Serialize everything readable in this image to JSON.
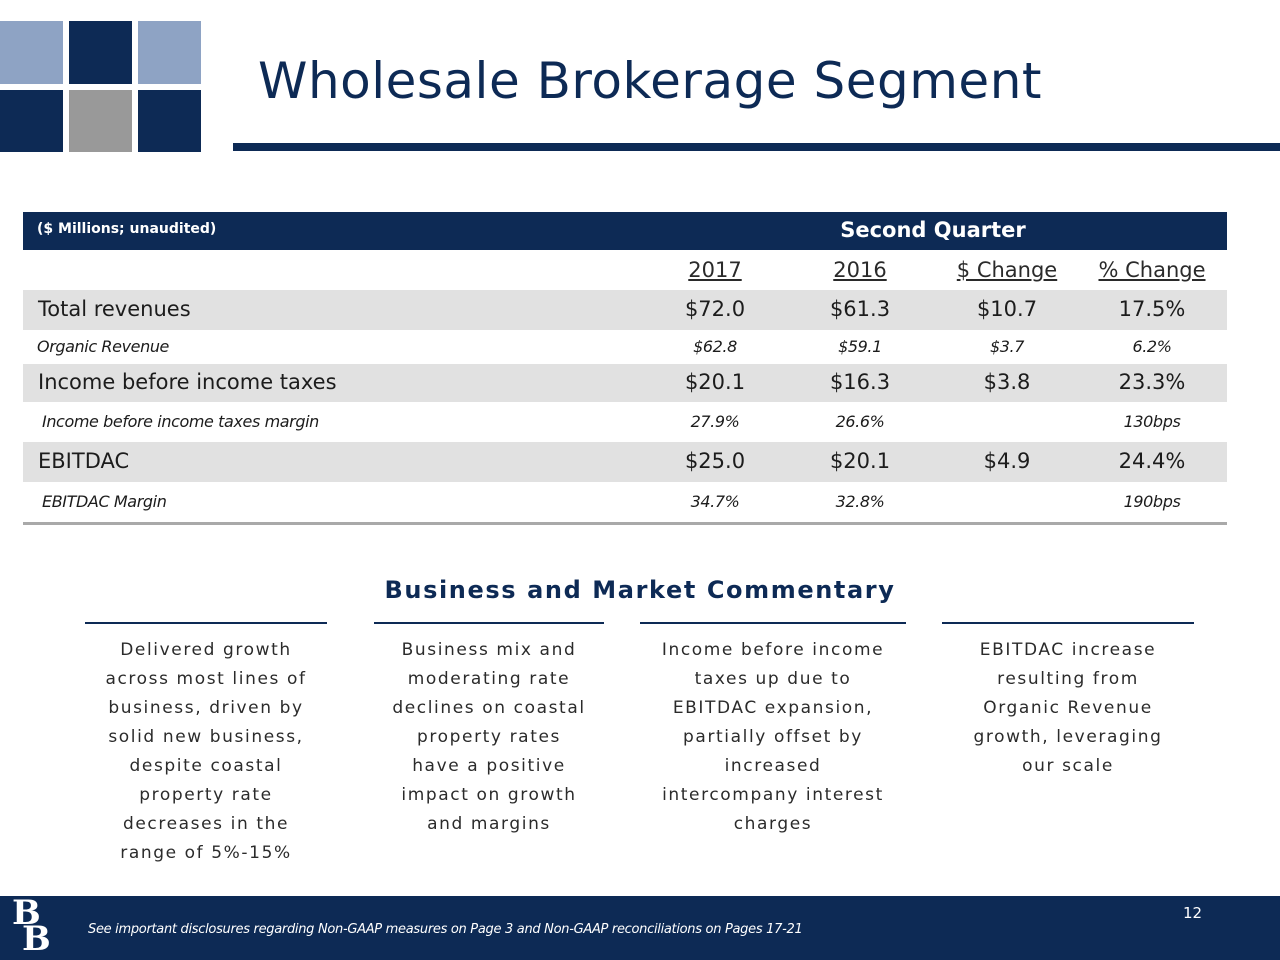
{
  "header": {
    "title": "Wholesale Brokerage Segment"
  },
  "colors": {
    "navy": "#0d2a55",
    "light_blue": "#8ea3c4",
    "gray": "#999999",
    "row_shade": "#e1e1e1"
  },
  "table": {
    "units": "($ Millions; unaudited)",
    "group_header": "Second Quarter",
    "columns": [
      "2017",
      "2016",
      "$ Change",
      "% Change"
    ],
    "rows": [
      {
        "label": "Total revenues",
        "values": [
          "$72.0",
          "$61.3",
          "$10.7",
          "17.5%"
        ]
      },
      {
        "label": "Organic Revenue",
        "values": [
          "$62.8",
          "$59.1",
          "$3.7",
          "6.2%"
        ]
      },
      {
        "label": "Income before income taxes",
        "values": [
          "$20.1",
          "$16.3",
          "$3.8",
          "23.3%"
        ]
      },
      {
        "label": "Income before income taxes margin",
        "values": [
          "27.9%",
          "26.6%",
          "",
          "130bps"
        ]
      },
      {
        "label": "EBITDAC",
        "values": [
          "$25.0",
          "$20.1",
          "$4.9",
          "24.4%"
        ]
      },
      {
        "label": "EBITDAC Margin",
        "values": [
          "34.7%",
          "32.8%",
          "",
          "190bps"
        ]
      }
    ]
  },
  "commentary": {
    "title": "Business and Market Commentary",
    "items": [
      "Delivered growth\nacross most lines of\nbusiness, driven by\nsolid new business,\ndespite coastal\nproperty rate\ndecreases in the\nrange of 5%-15%",
      "Business mix and\nmoderating rate\ndeclines on coastal\nproperty rates\nhave a positive\nimpact on growth\nand margins",
      "Income before income\ntaxes up due to\nEBITDAC expansion,\npartially offset by\nincreased\nintercompany interest\ncharges",
      "EBITDAC increase\nresulting from\nOrganic Revenue\ngrowth, leveraging\nour scale"
    ]
  },
  "footer": {
    "logo_text": "BB",
    "note": "See important disclosures regarding Non-GAAP measures on Page 3 and Non-GAAP reconciliations on Pages 17-21",
    "page_number": "12"
  }
}
